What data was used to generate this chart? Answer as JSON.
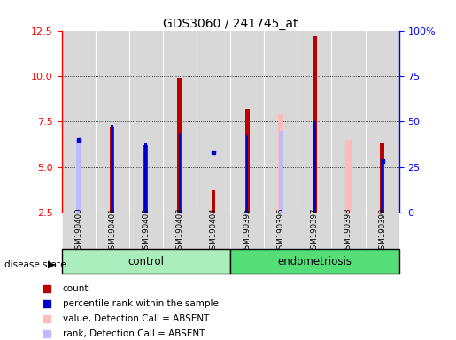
{
  "title": "GDS3060 / 241745_at",
  "samples": [
    "GSM190400",
    "GSM190401",
    "GSM190402",
    "GSM190403",
    "GSM190404",
    "GSM190395",
    "GSM190396",
    "GSM190397",
    "GSM190398",
    "GSM190399"
  ],
  "count_values": [
    null,
    7.2,
    6.2,
    9.9,
    3.7,
    8.2,
    null,
    12.2,
    null,
    6.3
  ],
  "rank_values": [
    null,
    7.3,
    6.3,
    6.9,
    null,
    6.8,
    null,
    7.5,
    null,
    5.3
  ],
  "value_absent": [
    5.9,
    null,
    null,
    null,
    null,
    null,
    7.9,
    null,
    6.5,
    null
  ],
  "rank_absent": [
    6.5,
    null,
    null,
    null,
    null,
    null,
    7.0,
    null,
    null,
    null
  ],
  "blue_dot_value": [
    6.5,
    null,
    null,
    null,
    5.8,
    null,
    null,
    null,
    null,
    5.3
  ],
  "ylim_left": [
    2.5,
    12.5
  ],
  "ylim_right": [
    0,
    100
  ],
  "yticks_left": [
    2.5,
    5.0,
    7.5,
    10.0,
    12.5
  ],
  "yticks_right": [
    0,
    25,
    50,
    75,
    100
  ],
  "ytick_labels_right": [
    "0",
    "25",
    "50",
    "75",
    "100%"
  ],
  "color_count": "#bb0000",
  "color_rank": "#0000cc",
  "color_val_absent": "#ffbbbb",
  "color_rank_absent": "#bbbbff",
  "color_bg": "#d8d8d8",
  "color_control": "#aaeebb",
  "color_endometriosis": "#55dd77",
  "legend_items": [
    {
      "label": "count",
      "color": "#bb0000"
    },
    {
      "label": "percentile rank within the sample",
      "color": "#0000cc"
    },
    {
      "label": "value, Detection Call = ABSENT",
      "color": "#ffbbbb"
    },
    {
      "label": "rank, Detection Call = ABSENT",
      "color": "#bbbbff"
    }
  ]
}
